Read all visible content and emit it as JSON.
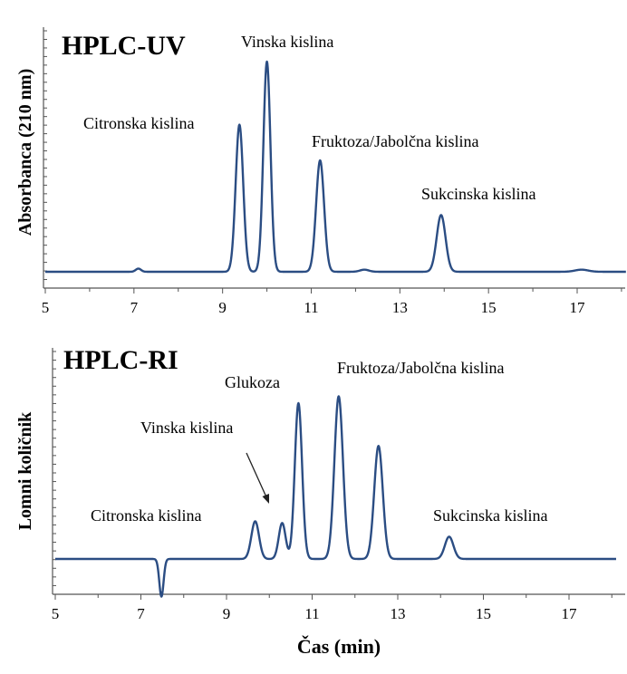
{
  "chart_data": [
    {
      "type": "line",
      "title": "HPLC-UV",
      "xlabel": "",
      "ylabel": "Absorbanca (210 nm)",
      "xlim": [
        5,
        18.1
      ],
      "ylim": [
        0,
        1.0
      ],
      "xticks": [
        5,
        7,
        9,
        11,
        13,
        15,
        17
      ],
      "color": "#2b4d83",
      "peaks": [
        {
          "x": 7.1,
          "height": 0.015,
          "width": 0.06
        },
        {
          "x": 9.38,
          "height": 0.7,
          "width": 0.085
        },
        {
          "x": 10.0,
          "height": 1.0,
          "width": 0.08
        },
        {
          "x": 11.2,
          "height": 0.53,
          "width": 0.09
        },
        {
          "x": 12.2,
          "height": 0.01,
          "width": 0.1
        },
        {
          "x": 13.93,
          "height": 0.27,
          "width": 0.1
        },
        {
          "x": 17.1,
          "height": 0.01,
          "width": 0.15
        }
      ],
      "annotations": [
        {
          "text": "Citronska kislina"
        },
        {
          "text": "Vinska kislina"
        },
        {
          "text": "Fruktoza/Jabolčna kislina"
        },
        {
          "text": "Sukcinska kislina"
        }
      ]
    },
    {
      "type": "line",
      "title": "HPLC-RI",
      "xlabel": "Čas (min)",
      "ylabel": "Lomni količnik",
      "xlim": [
        5,
        18.1
      ],
      "ylim": [
        -0.2,
        1.0
      ],
      "xticks": [
        5,
        7,
        9,
        11,
        13,
        15,
        17
      ],
      "color": "#2b4d83",
      "peaks": [
        {
          "x": 7.48,
          "height": -0.22,
          "width": 0.05
        },
        {
          "x": 9.67,
          "height": 0.22,
          "width": 0.09
        },
        {
          "x": 10.3,
          "height": 0.21,
          "width": 0.08
        },
        {
          "x": 10.68,
          "height": 0.91,
          "width": 0.085
        },
        {
          "x": 11.62,
          "height": 0.95,
          "width": 0.1
        },
        {
          "x": 12.55,
          "height": 0.66,
          "width": 0.1
        },
        {
          "x": 14.2,
          "height": 0.13,
          "width": 0.1
        }
      ],
      "annotations": [
        {
          "text": "Glukoza"
        },
        {
          "text": "Fruktoza/Jabolčna kislina"
        },
        {
          "text": "Vinska kislina"
        },
        {
          "text": "Citronska kislina"
        },
        {
          "text": "Sukcinska kislina"
        }
      ]
    }
  ]
}
